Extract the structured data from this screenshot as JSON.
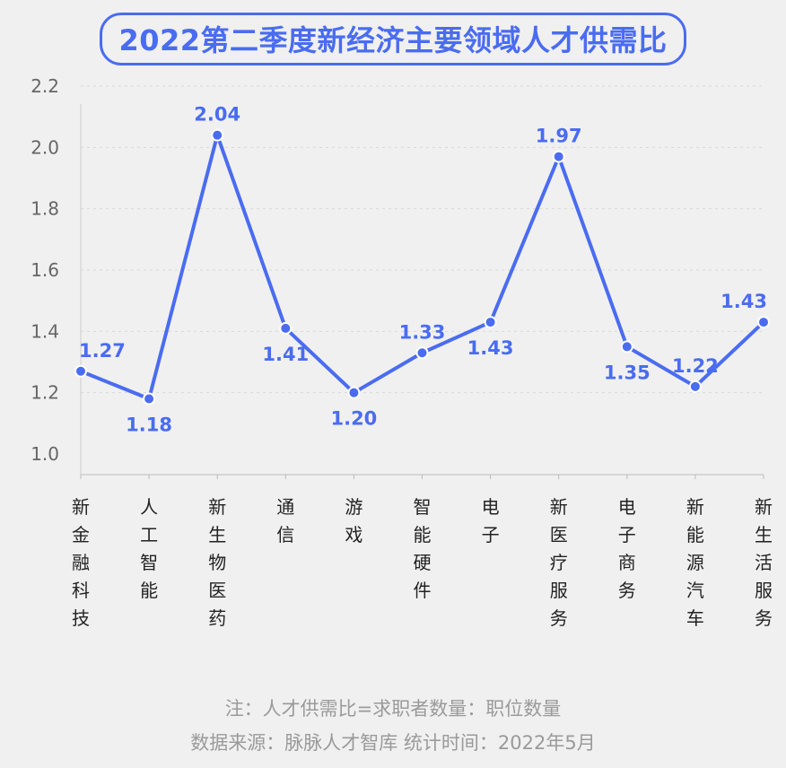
{
  "title": "2022第二季度新经济主要领域人才供需比",
  "chart_data": {
    "type": "line",
    "title": "2022第二季度新经济主要领域人才供需比",
    "categories": [
      "新金融科技",
      "人工智能",
      "新生物医药",
      "通信",
      "游戏",
      "智能硬件",
      "电子",
      "新医疗服务",
      "电子商务",
      "新能源汽车",
      "新生活服务"
    ],
    "values": [
      1.27,
      1.18,
      2.04,
      1.41,
      1.2,
      1.33,
      1.43,
      1.97,
      1.35,
      1.22,
      1.43
    ],
    "value_labels": [
      "1.27",
      "1.18",
      "2.04",
      "1.41",
      "1.20",
      "1.33",
      "1.43",
      "1.97",
      "1.35",
      "1.22",
      "1.43"
    ],
    "yticks": [
      "1.0",
      "1.2",
      "1.4",
      "1.6",
      "1.8",
      "2.0",
      "2.2"
    ],
    "ylim": [
      1.0,
      2.2
    ],
    "grid": true,
    "label_position": [
      "above",
      "below",
      "above",
      "below",
      "below",
      "above",
      "below",
      "above",
      "below",
      "above",
      "above"
    ],
    "color": "#4a6cf0"
  },
  "footer": {
    "note": "注：人才供需比=求职者数量：职位数量",
    "source": "数据来源：脉脉人才智库   统计时间：2022年5月"
  }
}
